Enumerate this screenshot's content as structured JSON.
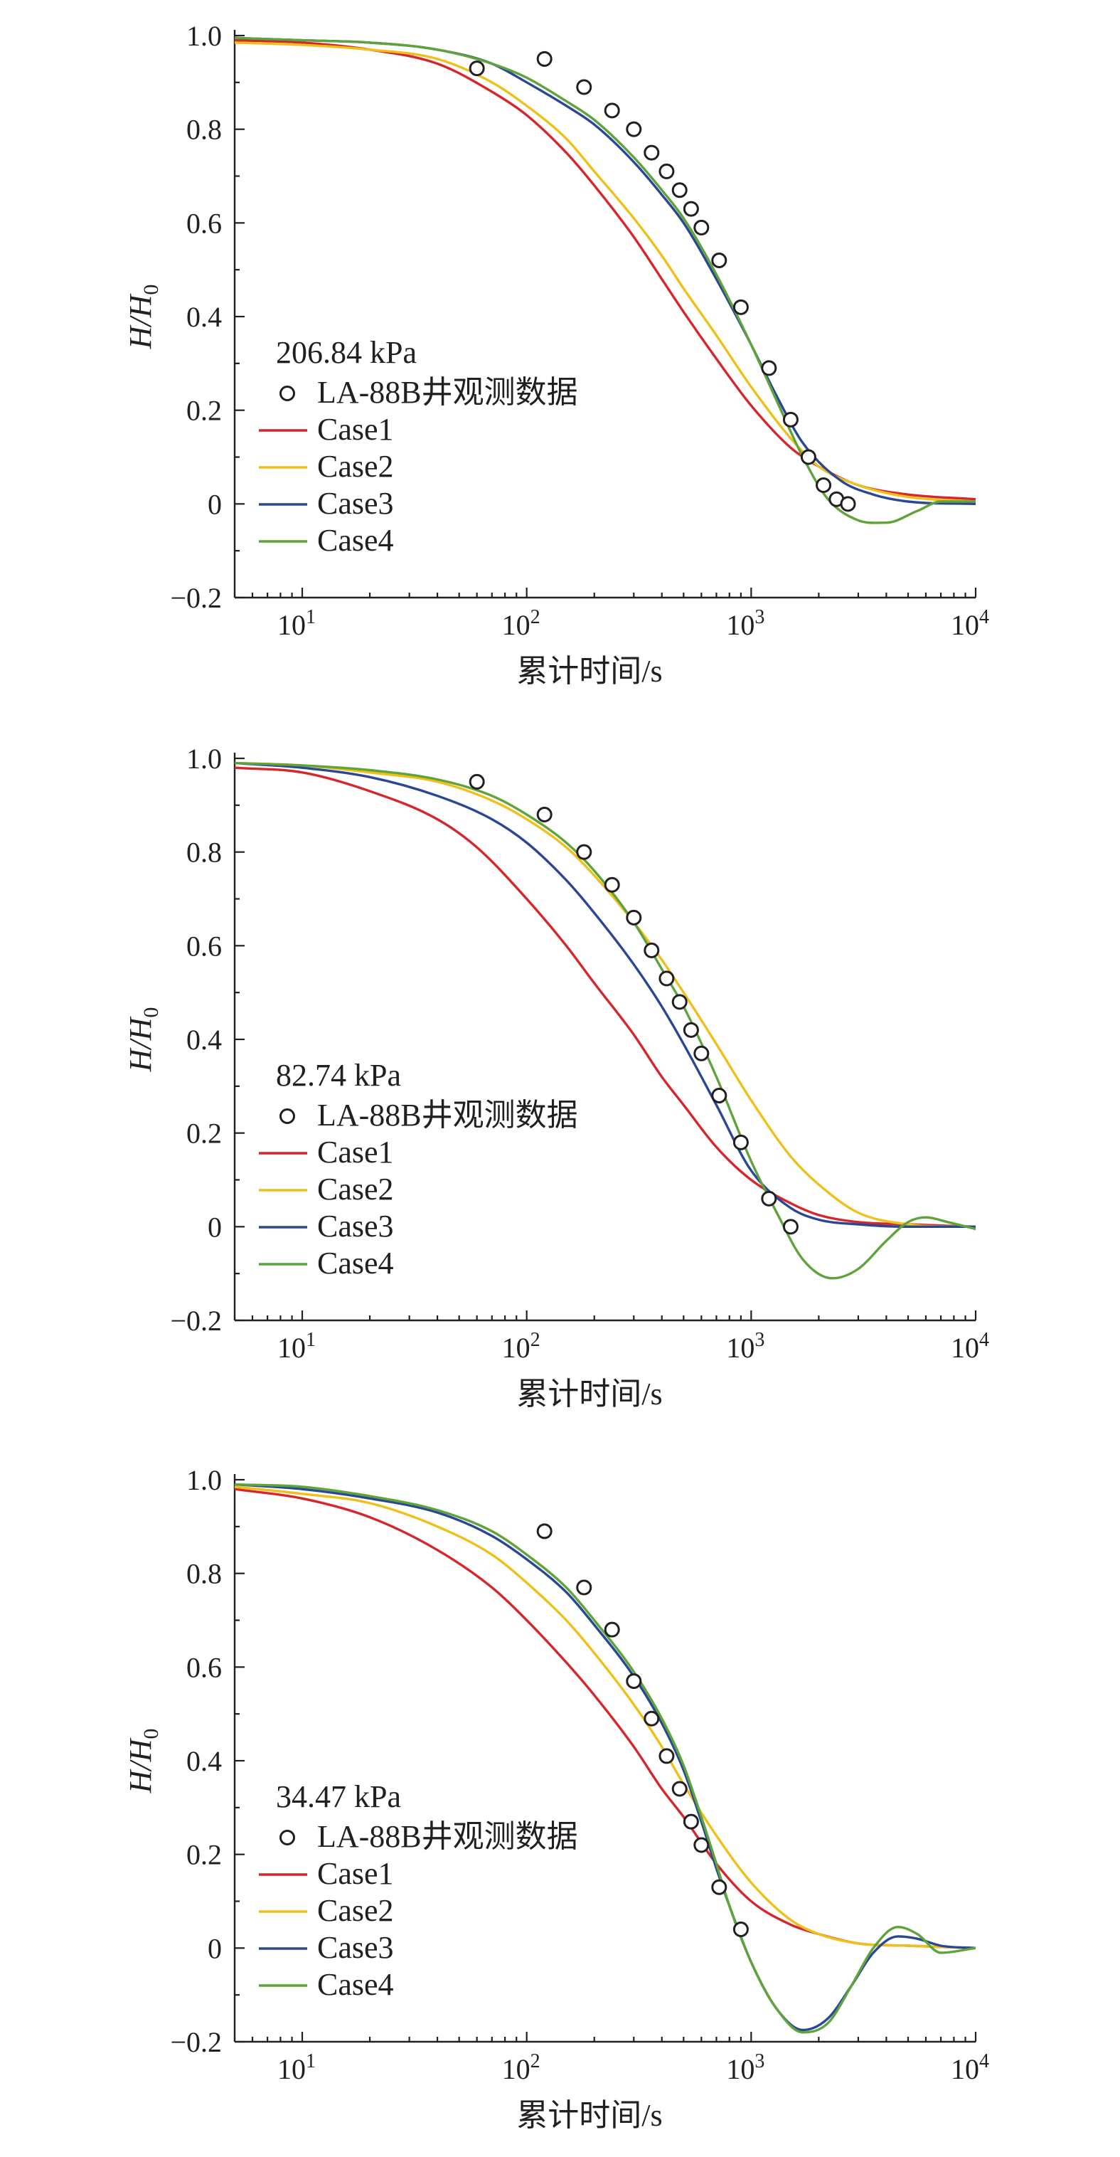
{
  "chart_data": [
    {
      "type": "line",
      "annotation": "206.84 kPa",
      "xlabel": "累计时间/s",
      "ylabel": "H/H0",
      "xscale": "log",
      "xlim": [
        5,
        10000
      ],
      "ylim": [
        -0.2,
        1.0
      ],
      "x_ticks": [
        10,
        100,
        1000,
        10000
      ],
      "x_tick_labels": [
        {
          "base": "10",
          "exp": "1"
        },
        {
          "base": "10",
          "exp": "2"
        },
        {
          "base": "10",
          "exp": "3"
        },
        {
          "base": "10",
          "exp": "4"
        }
      ],
      "y_ticks": [
        -0.2,
        0,
        0.2,
        0.4,
        0.6,
        0.8,
        1.0
      ],
      "y_tick_labels": [
        "−0.2",
        "0",
        "0.2",
        "0.4",
        "0.6",
        "0.8",
        "1.0"
      ],
      "legend_placement": "center-left",
      "scatter": {
        "name": "LA-88B井观测数据",
        "x": [
          60,
          120,
          180,
          240,
          300,
          360,
          420,
          480,
          540,
          600,
          720,
          900,
          1200,
          1500,
          1800,
          2100,
          2400,
          2700
        ],
        "y": [
          0.93,
          0.95,
          0.89,
          0.84,
          0.8,
          0.75,
          0.71,
          0.67,
          0.63,
          0.59,
          0.52,
          0.42,
          0.29,
          0.18,
          0.1,
          0.04,
          0.01,
          0.0
        ]
      },
      "series": [
        {
          "name": "Case1",
          "color": "#d7262b",
          "x": [
            5,
            10,
            20,
            40,
            70,
            100,
            150,
            200,
            300,
            400,
            500,
            700,
            1000,
            1500,
            2000,
            3000,
            5000,
            10000
          ],
          "y": [
            0.99,
            0.985,
            0.97,
            0.94,
            0.88,
            0.83,
            0.75,
            0.68,
            0.57,
            0.48,
            0.41,
            0.31,
            0.21,
            0.12,
            0.08,
            0.04,
            0.02,
            0.01
          ]
        },
        {
          "name": "Case2",
          "color": "#efc01a",
          "x": [
            5,
            10,
            20,
            40,
            70,
            100,
            150,
            200,
            300,
            400,
            500,
            700,
            1000,
            1500,
            2000,
            3000,
            5000,
            10000
          ],
          "y": [
            0.985,
            0.98,
            0.97,
            0.95,
            0.9,
            0.85,
            0.78,
            0.71,
            0.61,
            0.53,
            0.46,
            0.36,
            0.25,
            0.14,
            0.08,
            0.04,
            0.015,
            0.005
          ]
        },
        {
          "name": "Case3",
          "color": "#2a4796",
          "x": [
            5,
            10,
            20,
            40,
            70,
            100,
            150,
            200,
            300,
            400,
            500,
            700,
            1000,
            1300,
            1700,
            2500,
            3500,
            5000,
            10000
          ],
          "y": [
            0.995,
            0.99,
            0.985,
            0.97,
            0.94,
            0.9,
            0.85,
            0.81,
            0.73,
            0.66,
            0.6,
            0.48,
            0.34,
            0.23,
            0.13,
            0.05,
            0.02,
            0.005,
            0.0
          ]
        },
        {
          "name": "Case4",
          "color": "#5ea43a",
          "x": [
            5,
            10,
            20,
            40,
            70,
            100,
            150,
            200,
            300,
            400,
            500,
            700,
            1000,
            1300,
            1700,
            2200,
            3000,
            4000,
            5500,
            7000,
            10000
          ],
          "y": [
            0.995,
            0.99,
            0.985,
            0.97,
            0.94,
            0.91,
            0.86,
            0.82,
            0.74,
            0.67,
            0.61,
            0.49,
            0.34,
            0.22,
            0.1,
            0.01,
            -0.035,
            -0.04,
            -0.015,
            0.005,
            0.005
          ]
        }
      ]
    },
    {
      "type": "line",
      "annotation": "82.74 kPa",
      "xlabel": "累计时间/s",
      "ylabel": "H/H0",
      "xscale": "log",
      "xlim": [
        5,
        10000
      ],
      "ylim": [
        -0.2,
        1.0
      ],
      "x_ticks": [
        10,
        100,
        1000,
        10000
      ],
      "x_tick_labels": [
        {
          "base": "10",
          "exp": "1"
        },
        {
          "base": "10",
          "exp": "2"
        },
        {
          "base": "10",
          "exp": "3"
        },
        {
          "base": "10",
          "exp": "4"
        }
      ],
      "y_ticks": [
        -0.2,
        0,
        0.2,
        0.4,
        0.6,
        0.8,
        1.0
      ],
      "y_tick_labels": [
        "−0.2",
        "0",
        "0.2",
        "0.4",
        "0.6",
        "0.8",
        "1.0"
      ],
      "legend_placement": "bottom-left",
      "scatter": {
        "name": "LA-88B井观测数据",
        "x": [
          60,
          120,
          180,
          240,
          300,
          360,
          420,
          480,
          540,
          600,
          720,
          900,
          1200,
          1500
        ],
        "y": [
          0.95,
          0.88,
          0.8,
          0.73,
          0.66,
          0.59,
          0.53,
          0.48,
          0.42,
          0.37,
          0.28,
          0.18,
          0.06,
          0.0
        ]
      },
      "series": [
        {
          "name": "Case1",
          "color": "#d7262b",
          "x": [
            5,
            10,
            20,
            40,
            60,
            100,
            150,
            200,
            300,
            400,
            500,
            700,
            1000,
            1500,
            2000,
            3000,
            5000,
            10000
          ],
          "y": [
            0.98,
            0.97,
            0.93,
            0.87,
            0.81,
            0.7,
            0.6,
            0.52,
            0.41,
            0.32,
            0.26,
            0.17,
            0.1,
            0.05,
            0.025,
            0.01,
            0.005,
            0.0
          ]
        },
        {
          "name": "Case2",
          "color": "#efc01a",
          "x": [
            5,
            10,
            20,
            40,
            70,
            100,
            150,
            200,
            300,
            400,
            500,
            700,
            1000,
            1500,
            2000,
            3000,
            5000,
            10000
          ],
          "y": [
            0.99,
            0.985,
            0.97,
            0.95,
            0.91,
            0.87,
            0.81,
            0.75,
            0.65,
            0.57,
            0.5,
            0.39,
            0.27,
            0.15,
            0.09,
            0.03,
            0.005,
            0.0
          ]
        },
        {
          "name": "Case3",
          "color": "#2a4796",
          "x": [
            5,
            10,
            20,
            40,
            70,
            100,
            150,
            200,
            300,
            400,
            500,
            700,
            1000,
            1500,
            2000,
            3000,
            5000,
            10000
          ],
          "y": [
            0.99,
            0.98,
            0.96,
            0.92,
            0.87,
            0.82,
            0.74,
            0.67,
            0.56,
            0.47,
            0.39,
            0.26,
            0.12,
            0.04,
            0.015,
            0.005,
            0.0,
            0.0
          ]
        },
        {
          "name": "Case4",
          "color": "#5ea43a",
          "x": [
            5,
            10,
            20,
            40,
            70,
            100,
            150,
            200,
            300,
            400,
            500,
            700,
            1000,
            1300,
            1700,
            2300,
            3000,
            4000,
            5000,
            6000,
            7500,
            10000
          ],
          "y": [
            0.99,
            0.985,
            0.975,
            0.955,
            0.92,
            0.88,
            0.82,
            0.76,
            0.65,
            0.55,
            0.47,
            0.32,
            0.14,
            0.03,
            -0.07,
            -0.11,
            -0.09,
            -0.03,
            0.01,
            0.02,
            0.01,
            -0.005
          ]
        }
      ]
    },
    {
      "type": "line",
      "annotation": "34.47 kPa",
      "xlabel": "累计时间/s",
      "ylabel": "H/H0",
      "xscale": "log",
      "xlim": [
        5,
        10000
      ],
      "ylim": [
        -0.2,
        1.0
      ],
      "x_ticks": [
        10,
        100,
        1000,
        10000
      ],
      "x_tick_labels": [
        {
          "base": "10",
          "exp": "1"
        },
        {
          "base": "10",
          "exp": "2"
        },
        {
          "base": "10",
          "exp": "3"
        },
        {
          "base": "10",
          "exp": "4"
        }
      ],
      "y_ticks": [
        -0.2,
        0,
        0.2,
        0.4,
        0.6,
        0.8,
        1.0
      ],
      "y_tick_labels": [
        "−0.2",
        "0",
        "0.2",
        "0.4",
        "0.6",
        "0.8",
        "1.0"
      ],
      "legend_placement": "bottom-left",
      "scatter": {
        "name": "LA-88B井观测数据",
        "x": [
          120,
          180,
          240,
          300,
          360,
          420,
          480,
          540,
          600,
          720,
          900
        ],
        "y": [
          0.89,
          0.77,
          0.68,
          0.57,
          0.49,
          0.41,
          0.34,
          0.27,
          0.22,
          0.13,
          0.04
        ]
      },
      "series": [
        {
          "name": "Case1",
          "color": "#d7262b",
          "x": [
            5,
            10,
            20,
            40,
            70,
            100,
            150,
            200,
            300,
            400,
            500,
            700,
            1000,
            1500,
            2000,
            3000,
            5000,
            10000
          ],
          "y": [
            0.98,
            0.96,
            0.92,
            0.85,
            0.77,
            0.7,
            0.61,
            0.54,
            0.43,
            0.34,
            0.28,
            0.18,
            0.1,
            0.05,
            0.03,
            0.01,
            0.005,
            0.0
          ]
        },
        {
          "name": "Case2",
          "color": "#efc01a",
          "x": [
            5,
            10,
            20,
            40,
            70,
            100,
            150,
            200,
            300,
            400,
            500,
            700,
            1000,
            1500,
            2000,
            3000,
            5000,
            10000
          ],
          "y": [
            0.985,
            0.97,
            0.95,
            0.9,
            0.84,
            0.78,
            0.7,
            0.63,
            0.52,
            0.43,
            0.35,
            0.24,
            0.14,
            0.06,
            0.03,
            0.01,
            0.005,
            0.0
          ]
        },
        {
          "name": "Case3",
          "color": "#2a4796",
          "x": [
            5,
            10,
            20,
            40,
            70,
            100,
            150,
            200,
            300,
            400,
            500,
            600,
            700,
            800,
            1000,
            1300,
            1700,
            2200,
            2800,
            3500,
            4500,
            5500,
            7000,
            10000
          ],
          "y": [
            0.99,
            0.98,
            0.96,
            0.93,
            0.88,
            0.83,
            0.76,
            0.69,
            0.58,
            0.48,
            0.38,
            0.27,
            0.17,
            0.09,
            -0.03,
            -0.13,
            -0.175,
            -0.15,
            -0.08,
            -0.01,
            0.025,
            0.02,
            0.005,
            0.0
          ]
        },
        {
          "name": "Case4",
          "color": "#5ea43a",
          "x": [
            5,
            10,
            20,
            40,
            70,
            100,
            150,
            200,
            300,
            400,
            500,
            600,
            700,
            800,
            1000,
            1300,
            1700,
            2200,
            2800,
            3500,
            4500,
            5500,
            7000,
            10000
          ],
          "y": [
            0.99,
            0.985,
            0.965,
            0.935,
            0.89,
            0.84,
            0.77,
            0.7,
            0.59,
            0.49,
            0.39,
            0.28,
            0.18,
            0.09,
            -0.03,
            -0.13,
            -0.18,
            -0.16,
            -0.08,
            0.0,
            0.045,
            0.03,
            -0.01,
            0.0
          ]
        }
      ]
    }
  ]
}
